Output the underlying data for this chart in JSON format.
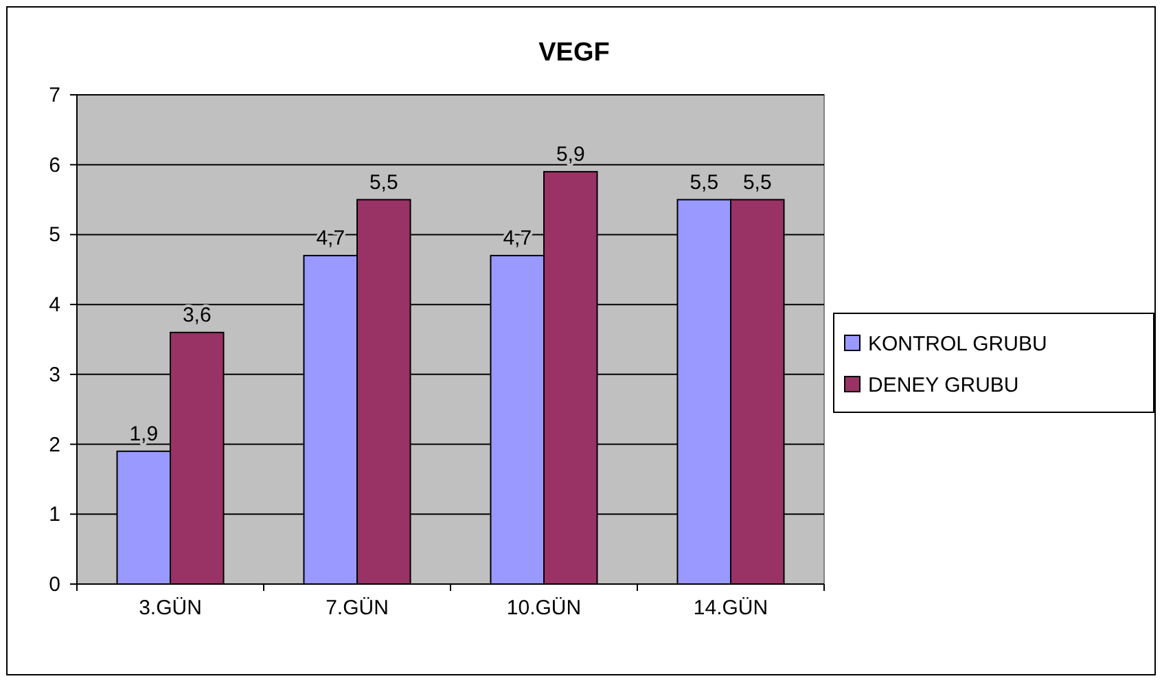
{
  "chart_data": {
    "type": "bar",
    "title": "VEGF",
    "categories": [
      "3.GÜN",
      "7.GÜN",
      "10.GÜN",
      "14.GÜN"
    ],
    "series": [
      {
        "name": "KONTROL GRUBU",
        "color": "#9999ff",
        "values": [
          1.9,
          4.7,
          4.7,
          5.5
        ],
        "value_labels": [
          "1,9",
          "4,7",
          "4,7",
          "5,5"
        ]
      },
      {
        "name": "DENEY GRUBU",
        "color": "#993366",
        "values": [
          3.6,
          5.5,
          5.9,
          5.5
        ],
        "value_labels": [
          "3,6",
          "5,5",
          "5,9",
          "5,5"
        ]
      }
    ],
    "ylim": [
      0,
      7
    ],
    "yticks": [
      0,
      1,
      2,
      3,
      4,
      5,
      6,
      7
    ],
    "grid": "y",
    "legend": "right"
  }
}
